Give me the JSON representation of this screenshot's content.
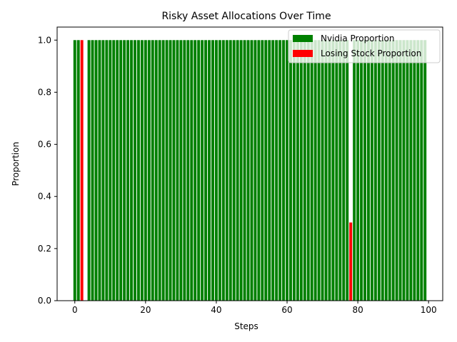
{
  "chart_data": {
    "type": "bar",
    "title": "Risky Asset Allocations Over Time",
    "xlabel": "Steps",
    "ylabel": "Proportion",
    "xlim": [
      -5.0,
      104.0
    ],
    "ylim": [
      0.0,
      1.05
    ],
    "xticks": [
      0,
      20,
      40,
      60,
      80,
      100
    ],
    "yticks": [
      0.0,
      0.2,
      0.4,
      0.6,
      0.8,
      1.0
    ],
    "xtick_labels": [
      "0",
      "20",
      "40",
      "60",
      "80",
      "100"
    ],
    "ytick_labels": [
      "0.0",
      "0.2",
      "0.4",
      "0.6",
      "0.8",
      "1.0"
    ],
    "bar_width": 0.8,
    "legend_position": "upper right",
    "series": [
      {
        "name": "Nvidia Proportion",
        "color": "#008000",
        "x_start": 0,
        "default_value": 1.0,
        "count": 100,
        "overrides": {
          "2": 0.0,
          "3": 0.0,
          "78": 0.0
        }
      },
      {
        "name": "Losing Stock Proportion",
        "color": "#ff0000",
        "points": [
          {
            "x": 2,
            "value": 1.0
          },
          {
            "x": 78,
            "value": 0.3
          }
        ]
      }
    ]
  }
}
